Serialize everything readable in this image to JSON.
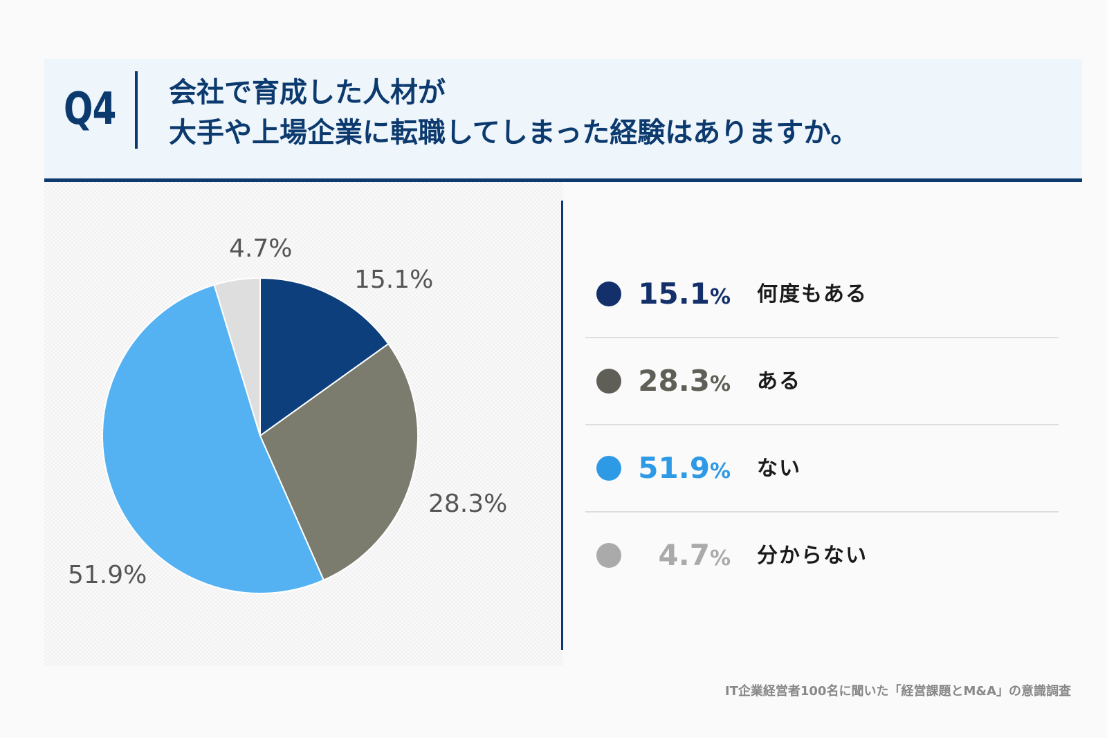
{
  "header": {
    "q_label": "Q4",
    "question_line1": "会社で育成した人材が",
    "question_line2": "大手や上場企業に転職してしまった経験はありますか。"
  },
  "chart_data": {
    "type": "pie",
    "slices": [
      {
        "label": "何度もある",
        "value": 15.1,
        "value_text": "15.1%",
        "color": "#0d3f7d",
        "legend_color": "#13306b"
      },
      {
        "label": "ある",
        "value": 28.3,
        "value_text": "28.3%",
        "color": "#7b7b6e",
        "legend_color": "#5f5f57"
      },
      {
        "label": "ない",
        "value": 51.9,
        "value_text": "51.9%",
        "color": "#55b2f2",
        "legend_color": "#2e9ae6"
      },
      {
        "label": "分からない",
        "value": 4.7,
        "value_text": "4.7%",
        "color": "#dedede",
        "legend_color": "#aaaaaa"
      }
    ],
    "start_angle": "12 o'clock, clockwise"
  },
  "legend": [
    {
      "number": "15.1",
      "unit": "%",
      "label": "何度もある",
      "color": "#13306b"
    },
    {
      "number": "28.3",
      "unit": "%",
      "label": "ある",
      "color": "#5f5f57"
    },
    {
      "number": "51.9",
      "unit": "%",
      "label": "ない",
      "color": "#2e9ae6"
    },
    {
      "number": "4.7",
      "unit": "%",
      "label": "分からない",
      "color": "#aaaaaa"
    }
  ],
  "footer": {
    "source": "IT企業経営者100名に聞いた「経営課題とM&A」の意識調査"
  }
}
